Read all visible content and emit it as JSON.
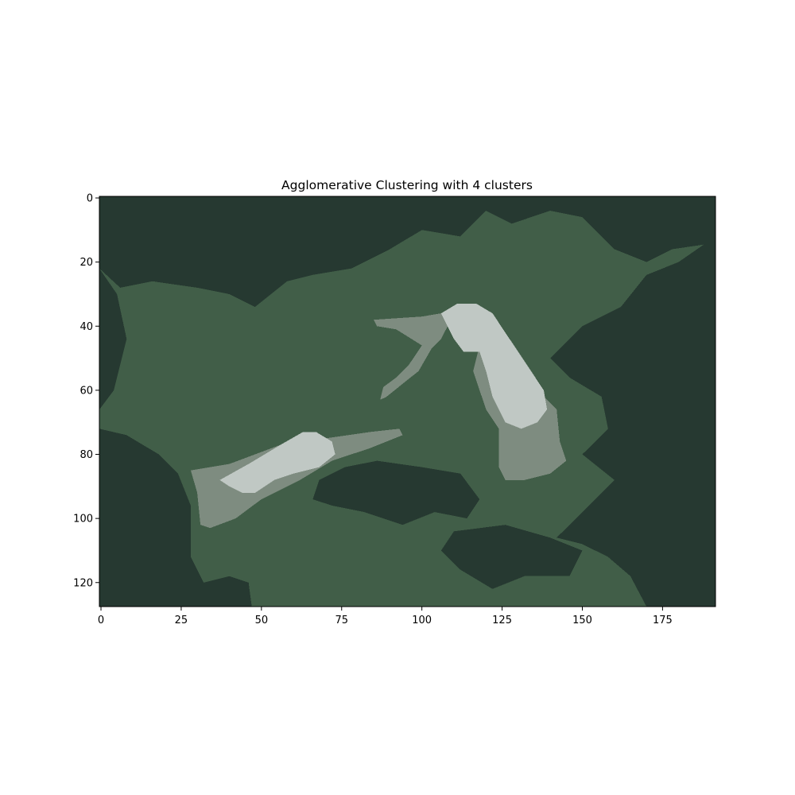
{
  "chart_data": {
    "type": "heatmap",
    "title": "Agglomerative Clustering with 4 clusters",
    "xlabel": "",
    "ylabel": "",
    "image_width": 192,
    "image_height": 128,
    "xlim": [
      -0.5,
      191.5
    ],
    "ylim": [
      127.5,
      -0.5
    ],
    "x_ticks": [
      0,
      25,
      50,
      75,
      100,
      125,
      150,
      175
    ],
    "y_ticks": [
      0,
      20,
      40,
      60,
      80,
      100,
      120
    ],
    "grid": false,
    "clusters": [
      {
        "id": 0,
        "color": "#263931"
      },
      {
        "id": 1,
        "color": "#415e48"
      },
      {
        "id": 2,
        "color": "#7e8c80"
      },
      {
        "id": 3,
        "color": "#c0c8c4"
      }
    ],
    "regions": [
      {
        "cluster": 1,
        "label_area": "middle-background",
        "points": [
          [
            8,
            20
          ],
          [
            20,
            15
          ],
          [
            45,
            16
          ],
          [
            70,
            22
          ],
          [
            100,
            20
          ],
          [
            120,
            22
          ],
          [
            140,
            24
          ],
          [
            160,
            26
          ],
          [
            168,
            30
          ],
          [
            162,
            40
          ],
          [
            152,
            48
          ],
          [
            146,
            56
          ],
          [
            155,
            62
          ],
          [
            158,
            70
          ],
          [
            150,
            78
          ],
          [
            160,
            86
          ],
          [
            150,
            100
          ],
          [
            135,
            106
          ],
          [
            120,
            112
          ],
          [
            100,
            114
          ],
          [
            80,
            116
          ],
          [
            60,
            118
          ],
          [
            45,
            116
          ],
          [
            30,
            112
          ],
          [
            28,
            96
          ],
          [
            24,
            86
          ],
          [
            15,
            76
          ],
          [
            6,
            72
          ],
          [
            4,
            60
          ],
          [
            10,
            44
          ],
          [
            6,
            28
          ]
        ]
      },
      {
        "cluster": 0,
        "label_area": "top-strip",
        "points": [
          [
            -0.5,
            -0.5
          ],
          [
            191.5,
            -0.5
          ],
          [
            191.5,
            14
          ],
          [
            178,
            16
          ],
          [
            170,
            20
          ],
          [
            160,
            16
          ],
          [
            150,
            6
          ],
          [
            140,
            4
          ],
          [
            128,
            8
          ],
          [
            120,
            4
          ],
          [
            112,
            12
          ],
          [
            100,
            10
          ],
          [
            90,
            16
          ],
          [
            78,
            22
          ],
          [
            66,
            24
          ],
          [
            58,
            26
          ],
          [
            48,
            34
          ],
          [
            40,
            30
          ],
          [
            30,
            28
          ],
          [
            16,
            26
          ],
          [
            6,
            28
          ],
          [
            -0.5,
            22
          ]
        ]
      },
      {
        "cluster": 0,
        "label_area": "right-region",
        "points": [
          [
            191.5,
            12
          ],
          [
            191.5,
            127.5
          ],
          [
            170,
            127.5
          ],
          [
            165,
            118
          ],
          [
            158,
            112
          ],
          [
            150,
            108
          ],
          [
            142,
            106
          ],
          [
            152,
            96
          ],
          [
            160,
            88
          ],
          [
            150,
            80
          ],
          [
            158,
            72
          ],
          [
            156,
            62
          ],
          [
            146,
            56
          ],
          [
            140,
            50
          ],
          [
            150,
            40
          ],
          [
            162,
            34
          ],
          [
            170,
            24
          ],
          [
            180,
            20
          ]
        ]
      },
      {
        "cluster": 0,
        "label_area": "left-edge",
        "points": [
          [
            -0.5,
            22
          ],
          [
            5,
            30
          ],
          [
            8,
            44
          ],
          [
            4,
            60
          ],
          [
            -0.5,
            66
          ]
        ]
      },
      {
        "cluster": 0,
        "label_area": "bottom-left",
        "points": [
          [
            -0.5,
            72
          ],
          [
            8,
            74
          ],
          [
            18,
            80
          ],
          [
            24,
            86
          ],
          [
            28,
            96
          ],
          [
            28,
            112
          ],
          [
            32,
            120
          ],
          [
            40,
            118
          ],
          [
            46,
            120
          ],
          [
            47,
            127.5
          ],
          [
            -0.5,
            127.5
          ]
        ]
      },
      {
        "cluster": 0,
        "label_area": "lower-middle-blobs",
        "points": [
          [
            68,
            88
          ],
          [
            76,
            84
          ],
          [
            86,
            82
          ],
          [
            100,
            84
          ],
          [
            112,
            86
          ],
          [
            118,
            94
          ],
          [
            114,
            100
          ],
          [
            104,
            98
          ],
          [
            94,
            102
          ],
          [
            82,
            98
          ],
          [
            72,
            96
          ],
          [
            66,
            94
          ]
        ]
      },
      {
        "cluster": 0,
        "label_area": "lower-middle-blobs-2",
        "points": [
          [
            110,
            104
          ],
          [
            126,
            102
          ],
          [
            140,
            106
          ],
          [
            150,
            110
          ],
          [
            146,
            118
          ],
          [
            132,
            118
          ],
          [
            122,
            122
          ],
          [
            112,
            116
          ],
          [
            106,
            110
          ]
        ]
      },
      {
        "cluster": 2,
        "label_area": "left-bird-body",
        "points": [
          [
            28,
            85
          ],
          [
            40,
            83
          ],
          [
            56,
            77
          ],
          [
            70,
            75
          ],
          [
            84,
            73
          ],
          [
            93,
            72
          ],
          [
            94,
            74
          ],
          [
            84,
            78
          ],
          [
            72,
            82
          ],
          [
            62,
            88
          ],
          [
            50,
            94
          ],
          [
            42,
            100
          ],
          [
            34,
            103
          ],
          [
            31,
            102
          ],
          [
            30,
            92
          ]
        ]
      },
      {
        "cluster": 3,
        "label_area": "left-bird-neck",
        "points": [
          [
            37,
            88
          ],
          [
            46,
            83
          ],
          [
            56,
            77
          ],
          [
            63,
            73
          ],
          [
            67,
            73
          ],
          [
            72,
            76
          ],
          [
            73,
            80
          ],
          [
            68,
            84
          ],
          [
            60,
            86
          ],
          [
            54,
            88
          ],
          [
            48,
            92
          ],
          [
            44,
            92
          ],
          [
            40,
            90
          ]
        ]
      },
      {
        "cluster": 2,
        "label_area": "right-bird-beak",
        "points": [
          [
            85,
            38
          ],
          [
            100,
            37
          ],
          [
            106,
            36
          ],
          [
            108,
            40
          ],
          [
            106,
            44
          ],
          [
            103,
            47
          ],
          [
            99,
            54
          ],
          [
            94,
            58
          ],
          [
            89,
            62
          ],
          [
            87,
            63
          ],
          [
            88,
            59
          ],
          [
            92,
            56
          ],
          [
            96,
            52
          ],
          [
            100,
            46
          ],
          [
            92,
            41
          ],
          [
            86,
            40
          ]
        ]
      },
      {
        "cluster": 2,
        "label_area": "right-bird-body",
        "points": [
          [
            118,
            46
          ],
          [
            124,
            50
          ],
          [
            130,
            60
          ],
          [
            138,
            62
          ],
          [
            142,
            66
          ],
          [
            143,
            76
          ],
          [
            145,
            82
          ],
          [
            140,
            86
          ],
          [
            132,
            88
          ],
          [
            126,
            88
          ],
          [
            124,
            84
          ],
          [
            124,
            72
          ],
          [
            120,
            66
          ],
          [
            116,
            54
          ]
        ]
      },
      {
        "cluster": 3,
        "label_area": "right-bird-neck",
        "points": [
          [
            106,
            36
          ],
          [
            111,
            33
          ],
          [
            117,
            33
          ],
          [
            122,
            36
          ],
          [
            126,
            42
          ],
          [
            130,
            48
          ],
          [
            134,
            54
          ],
          [
            138,
            60
          ],
          [
            139,
            66
          ],
          [
            136,
            70
          ],
          [
            131,
            72
          ],
          [
            126,
            70
          ],
          [
            122,
            62
          ],
          [
            120,
            54
          ],
          [
            118,
            48
          ],
          [
            113,
            48
          ],
          [
            110,
            44
          ],
          [
            108,
            40
          ]
        ]
      }
    ]
  }
}
